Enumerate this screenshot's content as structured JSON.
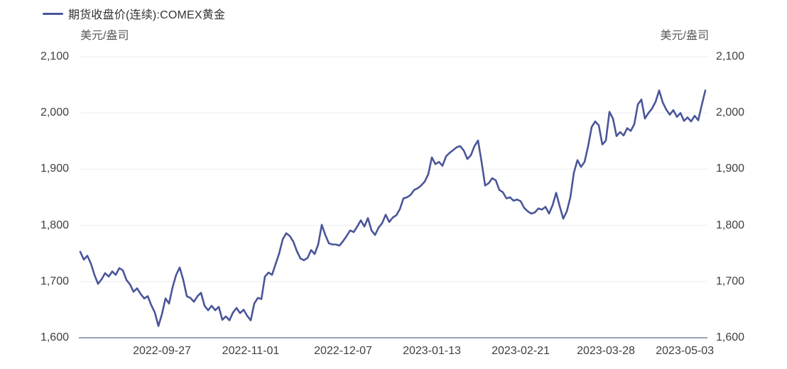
{
  "legend": {
    "label": "期货收盘价(连续):COMEX黄金"
  },
  "axes": {
    "unit_left": "美元/盎司",
    "unit_right": "美元/盎司"
  },
  "colors": {
    "line": "#4A5699",
    "grid": "#E9EBF4",
    "axis": "#9AA0B6",
    "tick_text": "#404040",
    "unit_text": "#595959",
    "background": "#FFFFFF"
  },
  "chart_data": {
    "type": "line",
    "title": "期货收盘价(连续):COMEX黄金",
    "ylabel": "美元/盎司",
    "xlabel": "",
    "grid": true,
    "legend_position": "top-left",
    "ylim": [
      1600,
      2100
    ],
    "y_ticks": [
      1600,
      1700,
      1800,
      1900,
      2000,
      2100
    ],
    "y_tick_labels": [
      "1,600",
      "1,700",
      "1,800",
      "1,900",
      "2,000",
      "2,100"
    ],
    "x_tick_labels": [
      "2022-09-27",
      "2022-11-01",
      "2022-12-07",
      "2023-01-13",
      "2023-02-21",
      "2023-03-28",
      "2023-05-03"
    ],
    "x_tick_indices": [
      23,
      48,
      74,
      99,
      124,
      148,
      174
    ],
    "values": [
      1753,
      1739,
      1746,
      1732,
      1712,
      1696,
      1704,
      1715,
      1709,
      1718,
      1712,
      1724,
      1720,
      1703,
      1695,
      1682,
      1688,
      1678,
      1670,
      1674,
      1658,
      1645,
      1621,
      1642,
      1670,
      1661,
      1690,
      1712,
      1725,
      1703,
      1674,
      1671,
      1664,
      1674,
      1680,
      1657,
      1649,
      1657,
      1649,
      1655,
      1632,
      1638,
      1631,
      1645,
      1653,
      1644,
      1650,
      1639,
      1631,
      1661,
      1671,
      1669,
      1709,
      1716,
      1712,
      1731,
      1750,
      1775,
      1786,
      1781,
      1771,
      1754,
      1741,
      1738,
      1742,
      1756,
      1749,
      1766,
      1801,
      1783,
      1768,
      1766,
      1766,
      1764,
      1772,
      1781,
      1791,
      1788,
      1798,
      1809,
      1798,
      1813,
      1791,
      1783,
      1796,
      1804,
      1819,
      1806,
      1814,
      1818,
      1829,
      1848,
      1850,
      1854,
      1863,
      1866,
      1871,
      1878,
      1891,
      1921,
      1909,
      1913,
      1906,
      1923,
      1929,
      1934,
      1939,
      1941,
      1933,
      1918,
      1925,
      1941,
      1951,
      1913,
      1871,
      1875,
      1884,
      1880,
      1863,
      1859,
      1848,
      1850,
      1844,
      1846,
      1843,
      1831,
      1825,
      1821,
      1823,
      1830,
      1828,
      1833,
      1821,
      1836,
      1858,
      1834,
      1812,
      1825,
      1850,
      1894,
      1916,
      1904,
      1913,
      1941,
      1975,
      1985,
      1978,
      1944,
      1951,
      2002,
      1990,
      1959,
      1966,
      1960,
      1973,
      1968,
      1980,
      2015,
      2024,
      1990,
      2000,
      2008,
      2020,
      2040,
      2019,
      2006,
      1997,
      2005,
      1993,
      2000,
      1986,
      1992,
      1985,
      1995,
      1987,
      2014,
      2040
    ]
  }
}
